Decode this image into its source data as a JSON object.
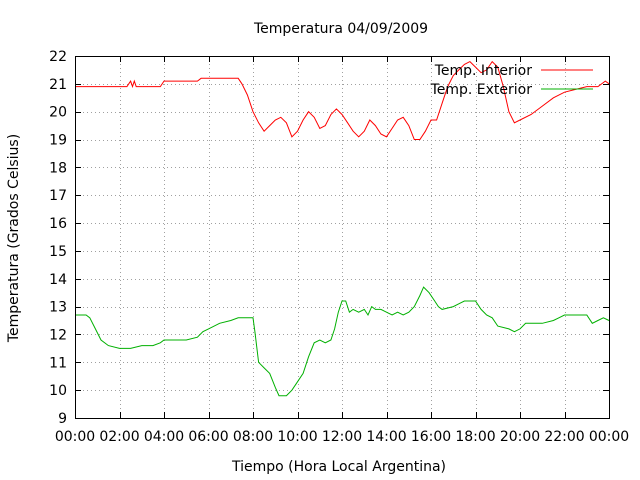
{
  "chart_data": {
    "type": "line",
    "title": "Temperatura 04/09/2009",
    "xlabel": "Tiempo (Hora Local Argentina)",
    "ylabel": "Temperatura (Grados Celsius)",
    "xlim": [
      "00:00",
      "24:00"
    ],
    "ylim": [
      9,
      22
    ],
    "x_tick_labels": [
      "00:00",
      "02:00",
      "04:00",
      "06:00",
      "08:00",
      "10:00",
      "12:00",
      "14:00",
      "16:00",
      "18:00",
      "20:00",
      "22:00",
      "00:00"
    ],
    "y_tick_labels": [
      "9",
      "10",
      "11",
      "12",
      "13",
      "14",
      "15",
      "16",
      "17",
      "18",
      "19",
      "20",
      "21",
      "22"
    ],
    "grid": true,
    "legend_position": "top-right",
    "series": [
      {
        "name": "Temp. Interior",
        "color": "#ff0000",
        "points": [
          [
            "00:00",
            20.9
          ],
          [
            "00:30",
            20.9
          ],
          [
            "01:00",
            20.9
          ],
          [
            "01:30",
            20.9
          ],
          [
            "02:00",
            20.9
          ],
          [
            "02:20",
            20.9
          ],
          [
            "02:30",
            21.1
          ],
          [
            "02:35",
            20.9
          ],
          [
            "02:40",
            21.1
          ],
          [
            "02:45",
            20.9
          ],
          [
            "03:00",
            20.9
          ],
          [
            "03:30",
            20.9
          ],
          [
            "03:50",
            20.9
          ],
          [
            "04:00",
            21.1
          ],
          [
            "04:30",
            21.1
          ],
          [
            "05:00",
            21.1
          ],
          [
            "05:30",
            21.1
          ],
          [
            "05:40",
            21.2
          ],
          [
            "06:00",
            21.2
          ],
          [
            "06:30",
            21.2
          ],
          [
            "07:00",
            21.2
          ],
          [
            "07:20",
            21.2
          ],
          [
            "07:30",
            21.0
          ],
          [
            "07:45",
            20.6
          ],
          [
            "08:00",
            20.0
          ],
          [
            "08:15",
            19.6
          ],
          [
            "08:30",
            19.3
          ],
          [
            "08:45",
            19.5
          ],
          [
            "09:00",
            19.7
          ],
          [
            "09:15",
            19.8
          ],
          [
            "09:30",
            19.6
          ],
          [
            "09:45",
            19.1
          ],
          [
            "10:00",
            19.3
          ],
          [
            "10:15",
            19.7
          ],
          [
            "10:30",
            20.0
          ],
          [
            "10:45",
            19.8
          ],
          [
            "11:00",
            19.4
          ],
          [
            "11:15",
            19.5
          ],
          [
            "11:30",
            19.9
          ],
          [
            "11:45",
            20.1
          ],
          [
            "12:00",
            19.9
          ],
          [
            "12:15",
            19.6
          ],
          [
            "12:30",
            19.3
          ],
          [
            "12:45",
            19.1
          ],
          [
            "13:00",
            19.3
          ],
          [
            "13:15",
            19.7
          ],
          [
            "13:30",
            19.5
          ],
          [
            "13:45",
            19.2
          ],
          [
            "14:00",
            19.1
          ],
          [
            "14:15",
            19.4
          ],
          [
            "14:30",
            19.7
          ],
          [
            "14:45",
            19.8
          ],
          [
            "15:00",
            19.5
          ],
          [
            "15:15",
            19.0
          ],
          [
            "15:30",
            19.0
          ],
          [
            "15:45",
            19.3
          ],
          [
            "16:00",
            19.7
          ],
          [
            "16:15",
            19.7
          ],
          [
            "16:30",
            20.3
          ],
          [
            "16:45",
            20.9
          ],
          [
            "17:00",
            21.3
          ],
          [
            "17:15",
            21.5
          ],
          [
            "17:30",
            21.7
          ],
          [
            "17:45",
            21.8
          ],
          [
            "18:00",
            21.6
          ],
          [
            "18:15",
            21.4
          ],
          [
            "18:30",
            21.5
          ],
          [
            "18:45",
            21.8
          ],
          [
            "19:00",
            21.6
          ],
          [
            "19:15",
            20.9
          ],
          [
            "19:30",
            20.0
          ],
          [
            "19:45",
            19.6
          ],
          [
            "20:00",
            19.7
          ],
          [
            "20:30",
            19.9
          ],
          [
            "21:00",
            20.2
          ],
          [
            "21:30",
            20.5
          ],
          [
            "22:00",
            20.7
          ],
          [
            "22:30",
            20.8
          ],
          [
            "23:00",
            20.9
          ],
          [
            "23:30",
            20.9
          ],
          [
            "23:50",
            21.1
          ],
          [
            "24:00",
            21.0
          ]
        ]
      },
      {
        "name": "Temp. Exterior",
        "color": "#00b000",
        "points": [
          [
            "00:00",
            12.7
          ],
          [
            "00:30",
            12.7
          ],
          [
            "00:40",
            12.6
          ],
          [
            "00:55",
            12.2
          ],
          [
            "01:10",
            11.8
          ],
          [
            "01:30",
            11.6
          ],
          [
            "02:00",
            11.5
          ],
          [
            "02:30",
            11.5
          ],
          [
            "03:00",
            11.6
          ],
          [
            "03:30",
            11.6
          ],
          [
            "03:50",
            11.7
          ],
          [
            "04:00",
            11.8
          ],
          [
            "04:30",
            11.8
          ],
          [
            "05:00",
            11.8
          ],
          [
            "05:30",
            11.9
          ],
          [
            "05:45",
            12.1
          ],
          [
            "06:00",
            12.2
          ],
          [
            "06:30",
            12.4
          ],
          [
            "07:00",
            12.5
          ],
          [
            "07:20",
            12.6
          ],
          [
            "07:30",
            12.6
          ],
          [
            "08:00",
            12.6
          ],
          [
            "08:05",
            12.1
          ],
          [
            "08:15",
            11.0
          ],
          [
            "08:30",
            10.8
          ],
          [
            "08:45",
            10.6
          ],
          [
            "09:00",
            10.1
          ],
          [
            "09:10",
            9.8
          ],
          [
            "09:30",
            9.8
          ],
          [
            "09:45",
            10.0
          ],
          [
            "10:00",
            10.3
          ],
          [
            "10:15",
            10.6
          ],
          [
            "10:30",
            11.2
          ],
          [
            "10:45",
            11.7
          ],
          [
            "11:00",
            11.8
          ],
          [
            "11:15",
            11.7
          ],
          [
            "11:30",
            11.8
          ],
          [
            "11:40",
            12.2
          ],
          [
            "11:50",
            12.8
          ],
          [
            "12:00",
            13.2
          ],
          [
            "12:10",
            13.2
          ],
          [
            "12:20",
            12.8
          ],
          [
            "12:30",
            12.9
          ],
          [
            "12:45",
            12.8
          ],
          [
            "13:00",
            12.9
          ],
          [
            "13:10",
            12.7
          ],
          [
            "13:20",
            13.0
          ],
          [
            "13:30",
            12.9
          ],
          [
            "13:45",
            12.9
          ],
          [
            "14:00",
            12.8
          ],
          [
            "14:15",
            12.7
          ],
          [
            "14:30",
            12.8
          ],
          [
            "14:45",
            12.7
          ],
          [
            "15:00",
            12.8
          ],
          [
            "15:15",
            13.0
          ],
          [
            "15:30",
            13.4
          ],
          [
            "15:40",
            13.7
          ],
          [
            "15:55",
            13.5
          ],
          [
            "16:10",
            13.2
          ],
          [
            "16:20",
            13.0
          ],
          [
            "16:30",
            12.9
          ],
          [
            "17:00",
            13.0
          ],
          [
            "17:15",
            13.1
          ],
          [
            "17:30",
            13.2
          ],
          [
            "18:00",
            13.2
          ],
          [
            "18:15",
            12.9
          ],
          [
            "18:30",
            12.7
          ],
          [
            "18:45",
            12.6
          ],
          [
            "19:00",
            12.3
          ],
          [
            "19:30",
            12.2
          ],
          [
            "19:45",
            12.1
          ],
          [
            "20:00",
            12.2
          ],
          [
            "20:15",
            12.4
          ],
          [
            "20:30",
            12.4
          ],
          [
            "21:00",
            12.4
          ],
          [
            "21:30",
            12.5
          ],
          [
            "21:45",
            12.6
          ],
          [
            "22:00",
            12.7
          ],
          [
            "22:30",
            12.7
          ],
          [
            "23:00",
            12.7
          ],
          [
            "23:15",
            12.4
          ],
          [
            "23:30",
            12.5
          ],
          [
            "23:45",
            12.6
          ],
          [
            "24:00",
            12.5
          ]
        ]
      }
    ]
  }
}
